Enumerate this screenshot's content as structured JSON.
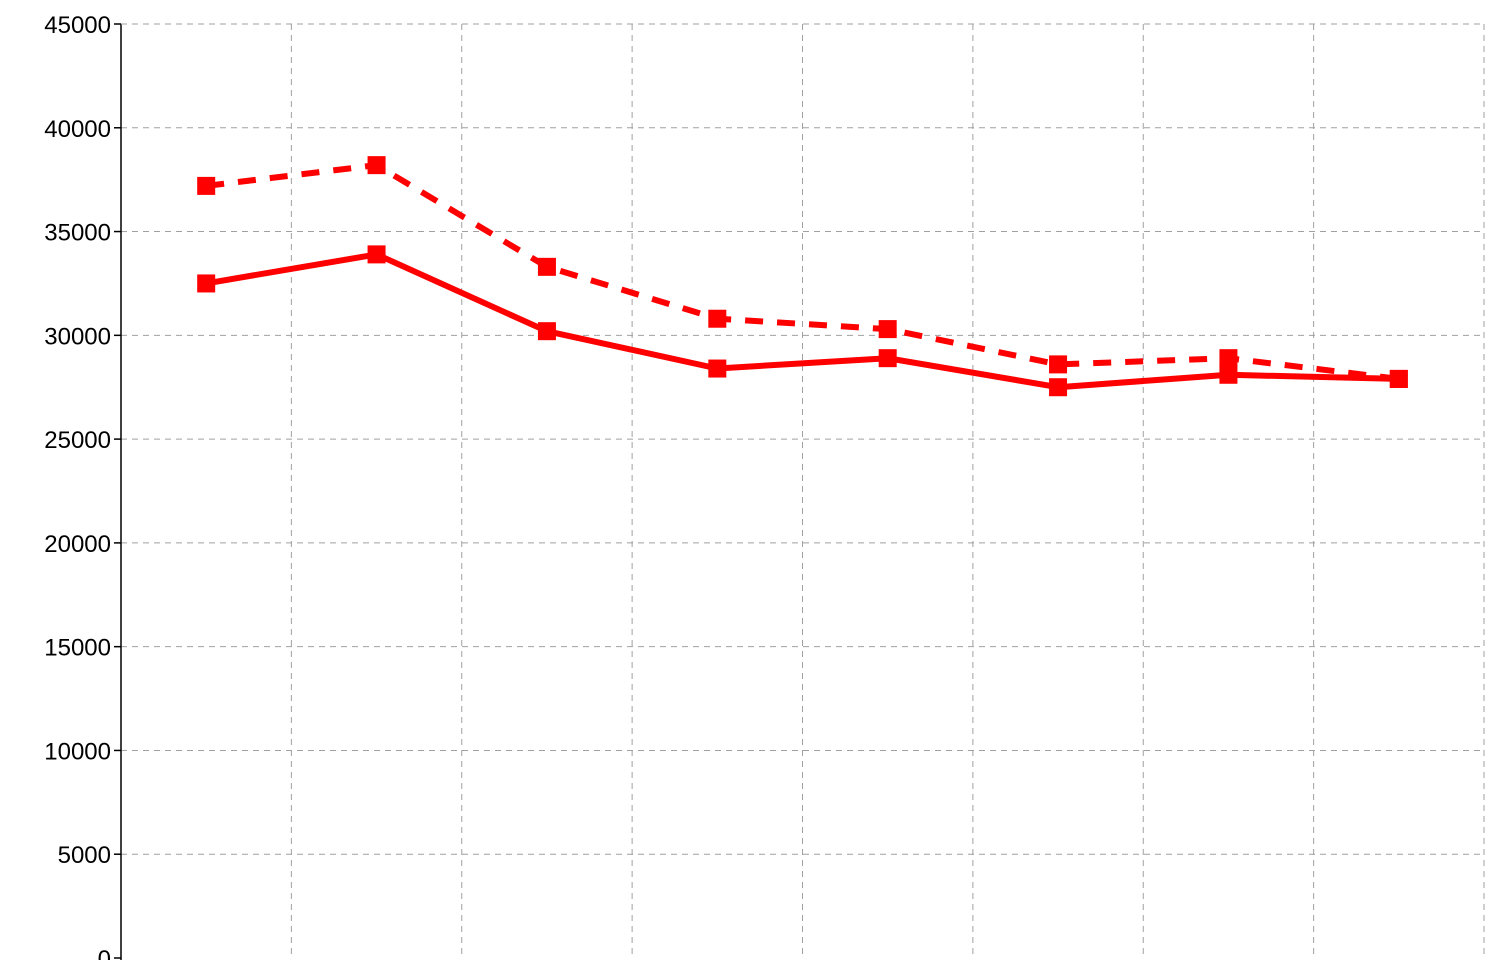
{
  "chart_data": {
    "type": "line",
    "title": "",
    "xlabel": "",
    "ylabel": "",
    "ylim": [
      0,
      45000
    ],
    "yticks": [
      0,
      5000,
      10000,
      15000,
      20000,
      25000,
      30000,
      35000,
      40000,
      45000
    ],
    "x_categories_count": 8,
    "grid": true,
    "legend": "none",
    "series": [
      {
        "style": "dashed",
        "color": "#ff0000",
        "marker": "square",
        "values": [
          37200,
          38200,
          33300,
          30800,
          30300,
          28600,
          28900,
          27900
        ]
      },
      {
        "style": "solid",
        "color": "#ff0000",
        "marker": "square",
        "values": [
          32500,
          33900,
          30200,
          28400,
          28900,
          27500,
          28100,
          27900
        ]
      }
    ]
  }
}
